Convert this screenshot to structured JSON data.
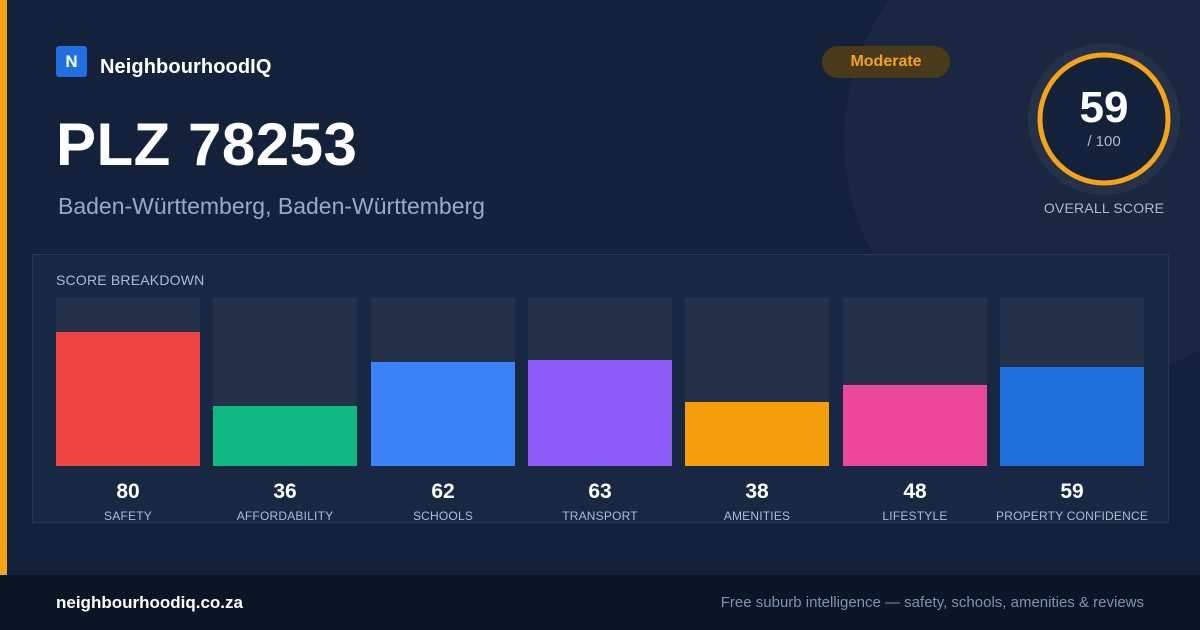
{
  "brand": {
    "logo_letter": "N",
    "name": "NeighbourhoodIQ"
  },
  "rating_badge": "Moderate",
  "title": "PLZ 78253",
  "subtitle": "Baden-Württemberg, Baden-Württemberg",
  "overall": {
    "score": "59",
    "max_label": "/ 100",
    "caption": "OVERALL SCORE",
    "fraction": 0.59
  },
  "colors": {
    "accent": "#f5a31a",
    "brand": "#1f6fe0",
    "background": "#14213a"
  },
  "breakdown": {
    "heading": "SCORE BREAKDOWN",
    "items": [
      {
        "label": "SAFETY",
        "value": "80",
        "score": 80,
        "color": "#ef4444"
      },
      {
        "label": "AFFORDABILITY",
        "value": "36",
        "score": 36,
        "color": "#10b981"
      },
      {
        "label": "SCHOOLS",
        "value": "62",
        "score": 62,
        "color": "#3b82f6"
      },
      {
        "label": "TRANSPORT",
        "value": "63",
        "score": 63,
        "color": "#8b5cf6"
      },
      {
        "label": "AMENITIES",
        "value": "38",
        "score": 38,
        "color": "#f59e0b"
      },
      {
        "label": "LIFESTYLE",
        "value": "48",
        "score": 48,
        "color": "#ec4899"
      },
      {
        "label": "PROPERTY CONFIDENCE",
        "value": "59",
        "score": 59,
        "color": "#1e6fd9"
      }
    ]
  },
  "footer": {
    "domain": "neighbourhoodiq.co.za",
    "tagline": "Free suburb intelligence — safety, schools, amenities & reviews"
  }
}
